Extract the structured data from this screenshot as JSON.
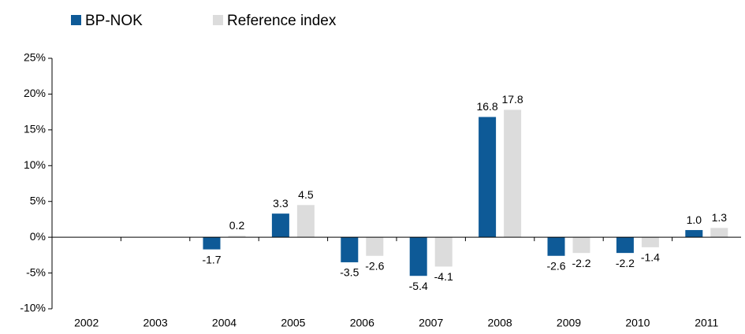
{
  "chart_data": {
    "type": "bar",
    "categories": [
      "2002",
      "2003",
      "2004",
      "2005",
      "2006",
      "2007",
      "2008",
      "2009",
      "2010",
      "2011"
    ],
    "series": [
      {
        "name": "BP-NOK",
        "color": "#0e5a97",
        "values": [
          null,
          null,
          -1.7,
          3.3,
          -3.5,
          -5.4,
          16.8,
          -2.6,
          -2.2,
          1.0
        ],
        "value_labels": [
          null,
          null,
          "-1.7",
          "3.3",
          "-3.5",
          "-5.4",
          "16.8",
          "-2.6",
          "-2.2",
          "1.0"
        ]
      },
      {
        "name": "Reference index",
        "color": "#dcdcdc",
        "values": [
          null,
          null,
          0.2,
          4.5,
          -2.6,
          -4.1,
          17.8,
          -2.2,
          -1.4,
          1.3
        ]
      }
    ],
    "ylim": [
      -10,
      25
    ],
    "yticks": [
      {
        "value": -10,
        "label": "-10%"
      },
      {
        "value": -5,
        "label": "-5%"
      },
      {
        "value": 0,
        "label": "0%"
      },
      {
        "value": 5,
        "label": "5%"
      },
      {
        "value": 10,
        "label": "10%"
      },
      {
        "value": 15,
        "label": "15%"
      },
      {
        "value": 20,
        "label": "20%"
      },
      {
        "value": 25,
        "label": "25%"
      }
    ],
    "grid": false,
    "legend": "top"
  }
}
